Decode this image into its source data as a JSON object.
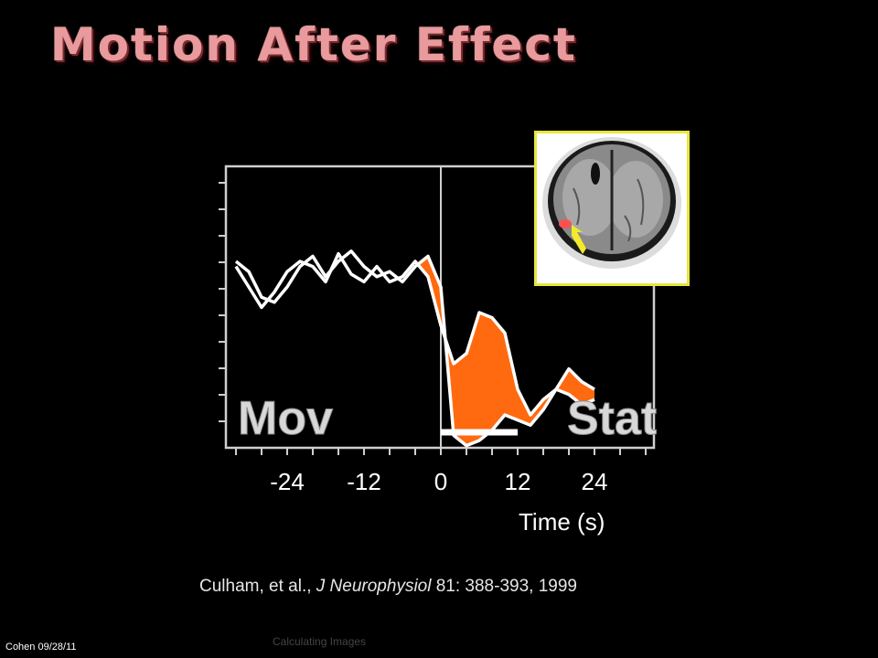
{
  "slide": {
    "title": "Motion After Effect",
    "citation_authors": "Culham, et al., ",
    "citation_journal": "J Neurophysiol",
    "citation_rest": " 81: 388-393, 1999",
    "footer_left": "Cohen 09/28/11",
    "footer_center": "Calculating Images"
  },
  "colors": {
    "background": "#000000",
    "fill": "#ff6a10",
    "line": "#ffffff",
    "inset_border": "#e8e63a",
    "title": "#e89a9c"
  },
  "chart_data": {
    "type": "line",
    "xlabel": "Time (s)",
    "ylabel": "",
    "x_ticks": [
      -24,
      -12,
      0,
      12,
      24
    ],
    "xlim": [
      -33,
      33
    ],
    "ylim": [
      0,
      1
    ],
    "annotations": [
      "Mov",
      "Stat"
    ],
    "stimulus_bar": [
      0,
      12
    ],
    "series": [
      {
        "x": [
          -32,
          -30,
          -28,
          -26,
          -24,
          -22,
          -20,
          -18,
          -16,
          -14,
          -12,
          -10,
          -8,
          -6,
          -4,
          -2,
          0,
          2,
          4,
          6,
          8,
          10,
          12,
          14,
          16,
          18,
          20,
          22,
          24
        ],
        "values": [
          0.78,
          0.7,
          0.62,
          0.68,
          0.76,
          0.8,
          0.78,
          0.72,
          0.83,
          0.75,
          0.72,
          0.78,
          0.72,
          0.74,
          0.8,
          0.74,
          0.55,
          0.4,
          0.44,
          0.6,
          0.58,
          0.52,
          0.3,
          0.2,
          0.26,
          0.3,
          0.38,
          0.33,
          0.3
        ]
      },
      {
        "x": [
          -32,
          -30,
          -28,
          -26,
          -24,
          -22,
          -20,
          -18,
          -16,
          -14,
          -12,
          -10,
          -8,
          -6,
          -4,
          -2,
          0,
          2,
          4,
          6,
          8,
          10,
          12,
          14,
          16,
          18,
          20,
          22,
          24
        ],
        "values": [
          0.8,
          0.76,
          0.66,
          0.64,
          0.7,
          0.78,
          0.82,
          0.74,
          0.8,
          0.84,
          0.78,
          0.74,
          0.76,
          0.72,
          0.78,
          0.82,
          0.7,
          0.12,
          0.08,
          0.1,
          0.14,
          0.2,
          0.18,
          0.16,
          0.22,
          0.3,
          0.28,
          0.24,
          0.26
        ]
      }
    ]
  }
}
